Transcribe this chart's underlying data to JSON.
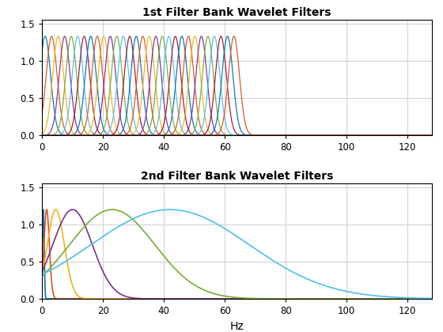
{
  "title1": "1st Filter Bank Wavelet Filters",
  "title2": "2nd Filter Bank Wavelet Filters",
  "xlabel": "Hz",
  "xlim": [
    0,
    128
  ],
  "ylim": [
    0,
    1.55
  ],
  "xticks": [
    0,
    20,
    40,
    60,
    80,
    100,
    120
  ],
  "yticks": [
    0,
    0.5,
    1.0,
    1.5
  ],
  "background": "#ffffff",
  "grid_color": "#d3d3d3",
  "title_fontsize": 10,
  "axis_label_fontsize": 10,
  "fb1_n_filters": 30,
  "fb1_amp": 1.33,
  "fb1_sigma_bw": 1.8,
  "fb2_centers": [
    0.4,
    1.5,
    4.5,
    10.0,
    23.0,
    42.0
  ],
  "fb2_sigmas": [
    0.28,
    0.9,
    2.8,
    6.5,
    14.0,
    26.0
  ],
  "fb2_amp": 1.2,
  "matlab_colors": [
    "#0072BD",
    "#D95319",
    "#EDB120",
    "#7E2F8E",
    "#77AC30",
    "#4DBEEE",
    "#A2142F"
  ]
}
